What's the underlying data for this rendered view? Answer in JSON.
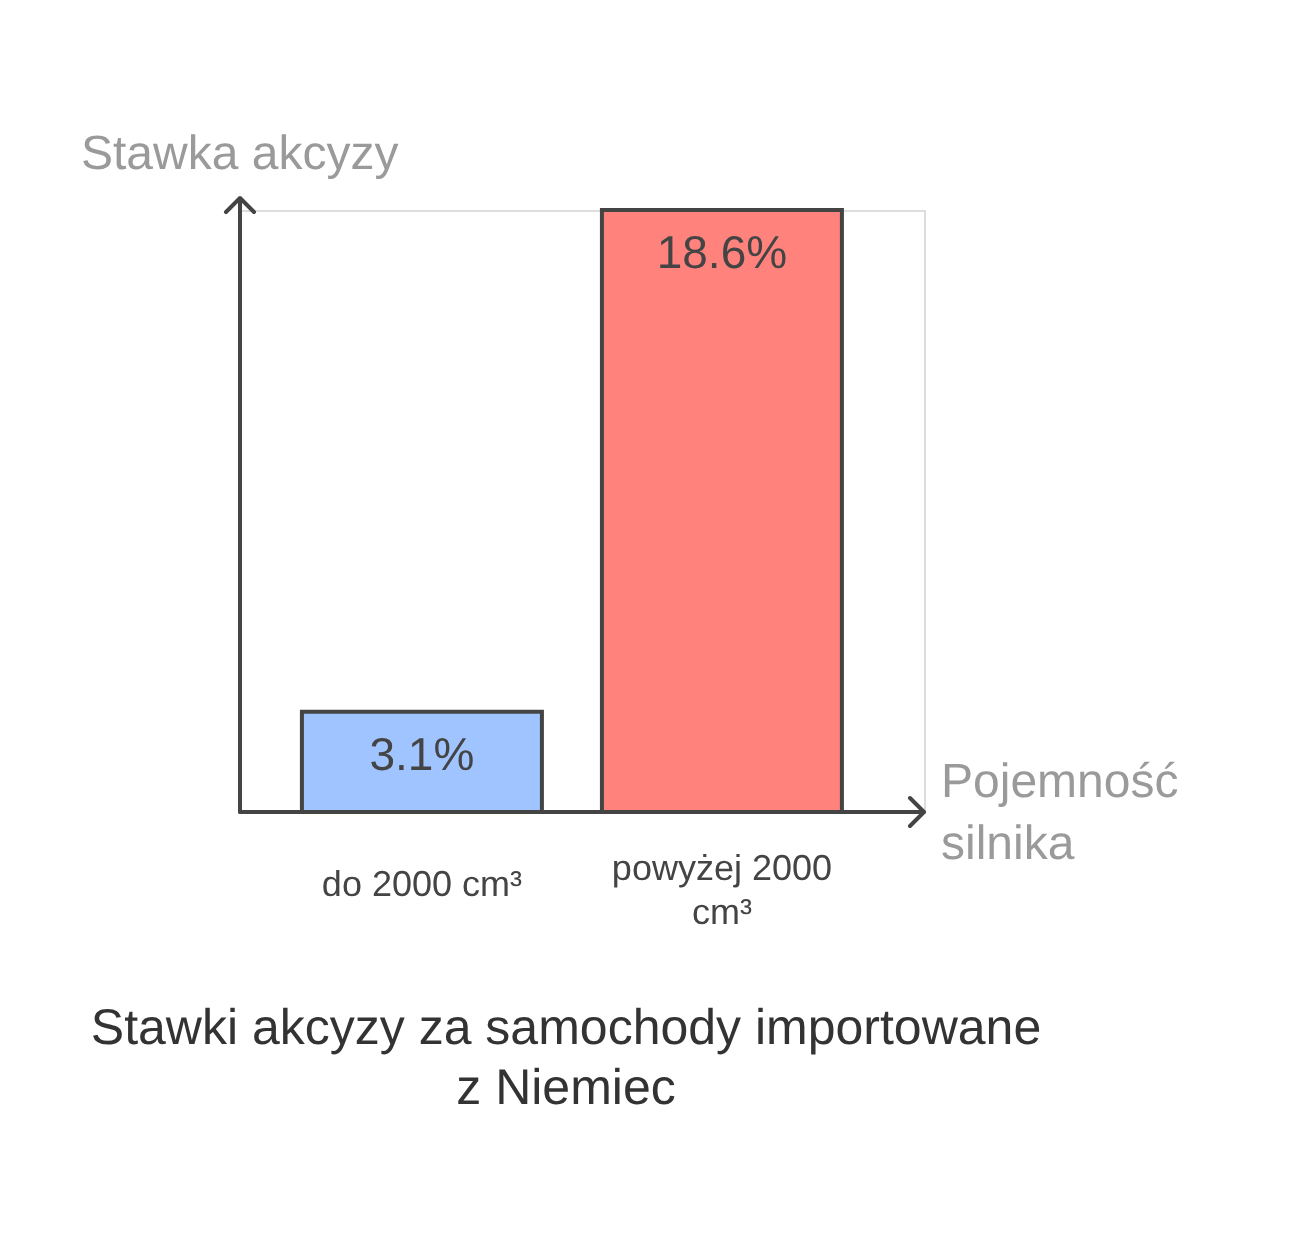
{
  "chart_data": {
    "type": "bar",
    "title": "Stawki akcyzy za samochody importowane z Niemiec",
    "xlabel": "Pojemność silnika",
    "ylabel": "Stawka akcyzy",
    "categories": [
      "do 2000 cm³",
      "powyżej 2000 cm³"
    ],
    "values": [
      3.1,
      18.6
    ],
    "colors": [
      "#a0c4ff",
      "#ff827d"
    ],
    "value_labels": [
      "3.1%",
      "18.6%"
    ]
  }
}
